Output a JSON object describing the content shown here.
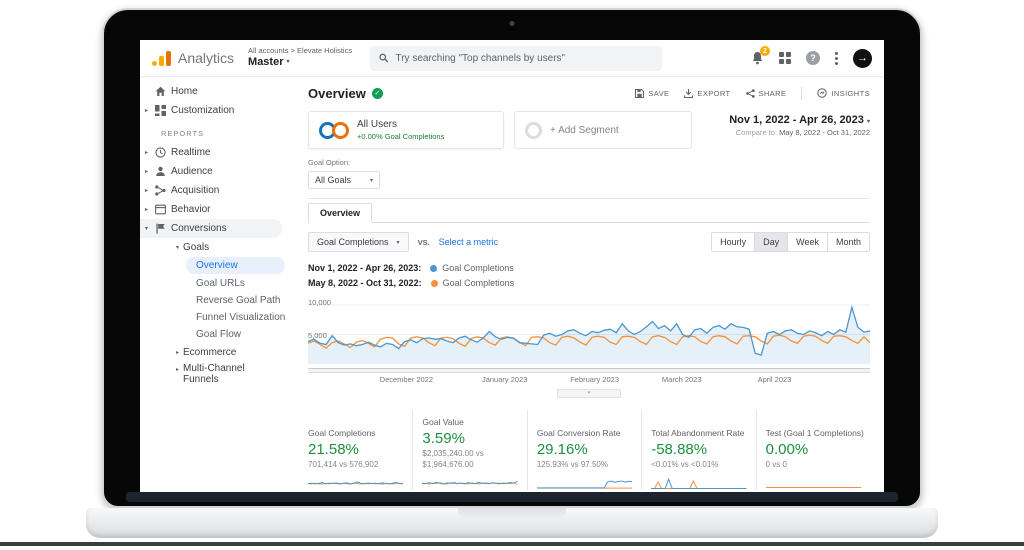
{
  "header": {
    "brand": "Analytics",
    "breadcrumb": "All accounts",
    "breadcrumb_arrow": ">",
    "account": "Elevate Holistics",
    "property": "Master",
    "search_placeholder": "Try searching \"Top channels by users\"",
    "notification_count": "2",
    "help_glyph": "?"
  },
  "icons": {
    "caret_down": "▾",
    "caret_right": "▸",
    "check": "✓",
    "arrow_right": "→",
    "plus": "+"
  },
  "sidebar": {
    "items_top": [
      {
        "label": "Home"
      },
      {
        "label": "Customization"
      }
    ],
    "reports_label": "REPORTS",
    "items_reports": [
      {
        "label": "Realtime"
      },
      {
        "label": "Audience"
      },
      {
        "label": "Acquisition"
      },
      {
        "label": "Behavior"
      },
      {
        "label": "Conversions"
      }
    ],
    "goals_label": "Goals",
    "goals_children": [
      {
        "label": "Overview"
      },
      {
        "label": "Goal URLs"
      },
      {
        "label": "Reverse Goal Path"
      },
      {
        "label": "Funnel Visualization"
      },
      {
        "label": "Goal Flow"
      }
    ],
    "items_bottom": [
      {
        "label": "Ecommerce"
      },
      {
        "label": "Multi-Channel Funnels"
      }
    ]
  },
  "toolbar": {
    "title": "Overview",
    "actions": [
      {
        "label": "SAVE"
      },
      {
        "label": "EXPORT"
      },
      {
        "label": "SHARE"
      },
      {
        "label": "INSIGHTS"
      }
    ]
  },
  "segments": {
    "all_users_label": "All Users",
    "all_users_delta": "+0.00% Goal Completions",
    "add_segment_label": "+ Add Segment"
  },
  "daterange": {
    "primary": "Nov 1, 2022 - Apr 26, 2023",
    "compare_label": "Compare to:",
    "compare": "May 8, 2022 - Oct 31, 2022"
  },
  "controls": {
    "goal_option_label": "Goal Option:",
    "goal_option_value": "All Goals",
    "tab": "Overview",
    "metric": "Goal Completions",
    "vs": "VS.",
    "select_metric": "Select a metric",
    "granularity": [
      {
        "label": "Hourly"
      },
      {
        "label": "Day"
      },
      {
        "label": "Week"
      },
      {
        "label": "Month"
      }
    ],
    "granularity_active": "Day"
  },
  "legend": [
    {
      "date": "Nov 1, 2022 - Apr 26, 2023:",
      "metric": "Goal Completions",
      "color": "#4a97cf"
    },
    {
      "date": "May 8, 2022 - Oct 31, 2022:",
      "metric": "Goal Completions",
      "color": "#f4913e"
    }
  ],
  "chart_data": {
    "type": "line",
    "ylabel": "Goal Completions",
    "y_ticks": [
      {
        "value": 10000,
        "label": "10,000"
      },
      {
        "value": 5000,
        "label": "5,000"
      }
    ],
    "ylim": [
      0,
      10500
    ],
    "grid": true,
    "x_months": [
      {
        "label": "December 2022",
        "pos": 0.175
      },
      {
        "label": "January 2023",
        "pos": 0.35
      },
      {
        "label": "February 2023",
        "pos": 0.51
      },
      {
        "label": "March 2023",
        "pos": 0.665
      },
      {
        "label": "April 2023",
        "pos": 0.83
      }
    ],
    "series": [
      {
        "name": "Nov 1, 2022 - Apr 26, 2023: Goal Completions",
        "color": "#4a97cf",
        "fill": "rgba(74,151,207,0.14)",
        "values": [
          3800,
          4200,
          3500,
          3300,
          4800,
          3600,
          3200,
          3400,
          3100,
          3300,
          3700,
          3200,
          2900,
          3500,
          3300,
          2600,
          3800,
          4100,
          3600,
          4300,
          4400,
          4200,
          4300,
          3900,
          3600,
          4400,
          4700,
          4100,
          3700,
          4400,
          5500,
          4600,
          4200,
          4500,
          4400,
          3600,
          3500,
          3400,
          3300,
          4900,
          5200,
          4700,
          5000,
          5600,
          5800,
          5200,
          4800,
          5500,
          5300,
          5700,
          5900,
          5300,
          6800,
          5600,
          5000,
          5500,
          6300,
          7200,
          6000,
          6500,
          5600,
          6800,
          5000,
          4500,
          5800,
          6000,
          5200,
          6200,
          6500,
          5900,
          6800,
          6300,
          6200,
          5900,
          1800,
          1500,
          5200,
          5500,
          5000,
          5600,
          5800,
          5200,
          5000,
          5600,
          5300,
          4800,
          5500,
          5000,
          5800,
          5400,
          9600,
          6200,
          5400,
          5600
        ]
      },
      {
        "name": "May 8, 2022 - Oct 31, 2022: Goal Completions",
        "color": "#f4913e",
        "values": [
          3500,
          3900,
          3300,
          2700,
          3600,
          3900,
          3400,
          2800,
          3700,
          4000,
          3500,
          2900,
          4200,
          4500,
          4400,
          3400,
          3000,
          4400,
          4600,
          4400,
          3600,
          3100,
          4400,
          4500,
          4300,
          3500,
          3000,
          4300,
          4600,
          4400,
          3600,
          3200,
          4400,
          4600,
          4300,
          3700,
          3100,
          4500,
          4600,
          4400,
          3600,
          3200,
          4500,
          4700,
          4400,
          3700,
          3200,
          4500,
          4700,
          4500,
          3700,
          3300,
          4600,
          4700,
          4500,
          3800,
          3300,
          4600,
          4800,
          4500,
          3800,
          3300,
          4600,
          4800,
          4600,
          3800,
          3400,
          4600,
          4800,
          4600,
          3900,
          3400,
          4700,
          4800,
          4600,
          3900,
          3400,
          4700,
          4900,
          4600,
          3900,
          3500,
          4700,
          4900,
          4700,
          4000,
          3500,
          4700,
          4800,
          4600,
          4000,
          3500,
          4600,
          3600
        ]
      }
    ]
  },
  "scorecards": [
    {
      "title": "Goal Completions",
      "change": "21.58%",
      "detail": "701,414 vs 576,902",
      "spark": {
        "blue": [
          40,
          45,
          38,
          42,
          50,
          39,
          44,
          41,
          46,
          40,
          43,
          48,
          38,
          44,
          55,
          42,
          39,
          46,
          41,
          44,
          40,
          47,
          42,
          38,
          45,
          50,
          40,
          44
        ],
        "orange": [
          42,
          38,
          44,
          40,
          36,
          43,
          39,
          45,
          41,
          37,
          44,
          40,
          38,
          45,
          42,
          39,
          43,
          38,
          44,
          40,
          42,
          37,
          43,
          40,
          38,
          44,
          41,
          39
        ]
      }
    },
    {
      "title": "Goal Value",
      "change": "3.59%",
      "detail": "$2,035,240.00 vs $1,964,676.00",
      "spark": {
        "blue": [
          45,
          40,
          48,
          42,
          52,
          44,
          38,
          47,
          43,
          50,
          41,
          45,
          39,
          48,
          44,
          40,
          52,
          43,
          46,
          41,
          48,
          44,
          39,
          46,
          42,
          50,
          44,
          62
        ],
        "orange": [
          40,
          44,
          38,
          45,
          41,
          47,
          42,
          39,
          46,
          43,
          40,
          45,
          41,
          38,
          46,
          43,
          39,
          45,
          42,
          40,
          46,
          42,
          45,
          40,
          44,
          41,
          46,
          34
        ]
      }
    },
    {
      "title": "Goal Conversion Rate",
      "change": "29.16%",
      "detail": "125.93% vs 97.50%",
      "spark": {
        "blue": [
          5,
          5,
          5,
          5,
          5,
          5,
          5,
          5,
          5,
          5,
          5,
          5,
          5,
          5,
          5,
          5,
          5,
          5,
          5,
          5,
          55,
          62,
          52,
          58,
          62,
          54,
          60,
          57
        ],
        "orange": [
          3,
          3,
          3,
          3,
          3,
          3,
          3,
          3,
          3,
          3,
          3,
          3,
          3,
          3,
          3,
          3,
          3,
          3,
          3,
          3,
          3,
          3,
          3,
          3,
          3,
          3,
          3,
          3
        ]
      }
    },
    {
      "title": "Total Abandonment Rate",
      "change": "-58.88%",
      "detail": "<0.01% vs <0.01%",
      "spark": {
        "blue": [
          0,
          0,
          0,
          0,
          0,
          78,
          0,
          0,
          0,
          0,
          0,
          0,
          0,
          0,
          0,
          0,
          0,
          0,
          0,
          0,
          0,
          0,
          0,
          0,
          0,
          0,
          0,
          0
        ],
        "orange": [
          0,
          0,
          55,
          0,
          0,
          0,
          0,
          0,
          0,
          0,
          0,
          0,
          62,
          0,
          0,
          0,
          0,
          0,
          0,
          0,
          0,
          0,
          0,
          0,
          0,
          0,
          0,
          0
        ]
      }
    },
    {
      "title": "Test (Goal 1 Completions)",
      "change": "0.00%",
      "detail": "0 vs 0",
      "spark": {
        "blue": [],
        "orange": [
          8,
          8,
          8,
          8,
          8,
          8,
          8,
          8,
          8,
          8,
          8,
          8,
          8,
          8,
          8,
          8,
          8,
          8,
          8,
          8,
          8,
          8,
          8,
          8,
          8,
          8,
          8,
          8
        ]
      }
    }
  ],
  "colors": {
    "accent_green": "#1e8e3e",
    "blue": "#4a97cf",
    "orange": "#f4913e",
    "link": "#1a73e8",
    "brand_orange": "#f9ab00"
  }
}
